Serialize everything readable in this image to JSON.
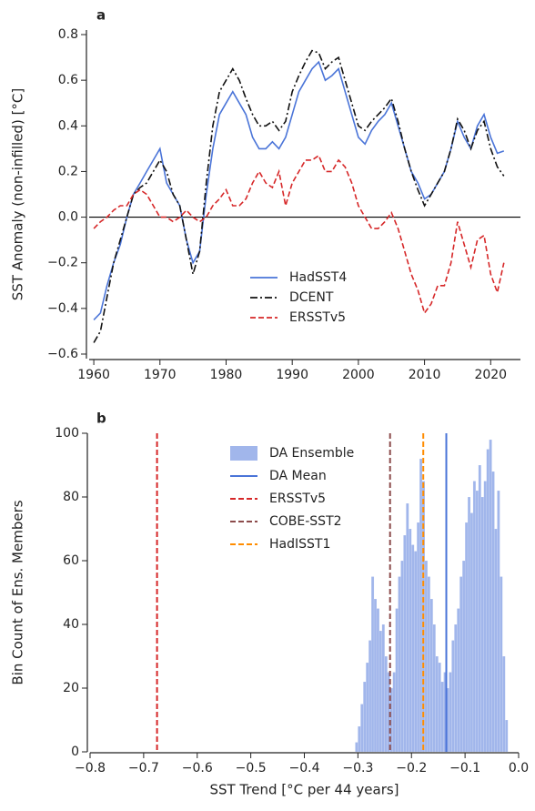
{
  "chart_data": [
    {
      "type": "line",
      "label": "a",
      "ylabel": "SST Anomaly (non-infilled) [°C]",
      "x": [
        1960,
        1961,
        1962,
        1963,
        1964,
        1965,
        1966,
        1967,
        1968,
        1969,
        1970,
        1971,
        1972,
        1973,
        1974,
        1975,
        1976,
        1977,
        1978,
        1979,
        1980,
        1981,
        1982,
        1983,
        1984,
        1985,
        1986,
        1987,
        1988,
        1989,
        1990,
        1991,
        1992,
        1993,
        1994,
        1995,
        1996,
        1997,
        1998,
        1999,
        2000,
        2001,
        2002,
        2003,
        2004,
        2005,
        2006,
        2007,
        2008,
        2009,
        2010,
        2011,
        2012,
        2013,
        2014,
        2015,
        2016,
        2017,
        2018,
        2019,
        2020,
        2021,
        2022
      ],
      "series": [
        {
          "name": "HadSST4",
          "color": "#4a74d8",
          "style": "solid",
          "values": [
            -0.45,
            -0.42,
            -0.3,
            -0.2,
            -0.12,
            0.0,
            0.1,
            0.15,
            0.2,
            0.25,
            0.3,
            0.15,
            0.1,
            0.05,
            -0.1,
            -0.2,
            -0.15,
            0.1,
            0.3,
            0.45,
            0.5,
            0.55,
            0.5,
            0.45,
            0.35,
            0.3,
            0.3,
            0.33,
            0.3,
            0.35,
            0.45,
            0.55,
            0.6,
            0.65,
            0.68,
            0.6,
            0.62,
            0.65,
            0.55,
            0.45,
            0.35,
            0.32,
            0.38,
            0.42,
            0.45,
            0.5,
            0.4,
            0.3,
            0.2,
            0.15,
            0.08,
            0.1,
            0.15,
            0.2,
            0.3,
            0.42,
            0.35,
            0.3,
            0.4,
            0.45,
            0.35,
            0.28,
            0.29
          ]
        },
        {
          "name": "DCENT",
          "color": "#111111",
          "style": "dashdot",
          "values": [
            -0.55,
            -0.5,
            -0.35,
            -0.2,
            -0.1,
            0.0,
            0.1,
            0.13,
            0.15,
            0.2,
            0.25,
            0.2,
            0.1,
            0.05,
            -0.1,
            -0.25,
            -0.15,
            0.15,
            0.4,
            0.55,
            0.6,
            0.65,
            0.6,
            0.52,
            0.45,
            0.4,
            0.4,
            0.42,
            0.38,
            0.42,
            0.55,
            0.62,
            0.68,
            0.73,
            0.72,
            0.65,
            0.68,
            0.7,
            0.6,
            0.5,
            0.4,
            0.38,
            0.42,
            0.45,
            0.48,
            0.52,
            0.42,
            0.3,
            0.2,
            0.12,
            0.05,
            0.1,
            0.15,
            0.2,
            0.3,
            0.43,
            0.38,
            0.3,
            0.38,
            0.42,
            0.3,
            0.22,
            0.18
          ]
        },
        {
          "name": "ERSSTv5",
          "color": "#d62728",
          "style": "dashed",
          "values": [
            -0.05,
            -0.02,
            0.0,
            0.03,
            0.05,
            0.05,
            0.1,
            0.12,
            0.1,
            0.05,
            0.0,
            0.0,
            -0.02,
            0.0,
            0.03,
            0.0,
            -0.02,
            0.0,
            0.05,
            0.08,
            0.12,
            0.05,
            0.05,
            0.08,
            0.15,
            0.2,
            0.15,
            0.13,
            0.2,
            0.05,
            0.15,
            0.2,
            0.25,
            0.25,
            0.27,
            0.2,
            0.2,
            0.25,
            0.22,
            0.15,
            0.05,
            0.0,
            -0.05,
            -0.05,
            -0.02,
            0.02,
            -0.05,
            -0.15,
            -0.25,
            -0.32,
            -0.42,
            -0.38,
            -0.3,
            -0.3,
            -0.2,
            -0.02,
            -0.12,
            -0.22,
            -0.1,
            -0.08,
            -0.25,
            -0.33,
            -0.2
          ]
        }
      ],
      "hline": 0,
      "xlim": [
        1959.3,
        2024.5
      ],
      "ylim": [
        -0.62,
        0.82
      ],
      "xticks": [
        1960,
        1970,
        1980,
        1990,
        2000,
        2010,
        2020
      ],
      "yticks": [
        {
          "value": -0.6,
          "label": "−0.6"
        },
        {
          "value": -0.4,
          "label": "−0.4"
        },
        {
          "value": -0.2,
          "label": "−0.2"
        },
        {
          "value": 0,
          "label": "0.0"
        },
        0.2,
        0.4,
        0.6,
        0.8
      ],
      "legend": "lower right"
    },
    {
      "type": "histogram",
      "label": "b",
      "xlabel": "SST Trend [°C per 44 years]",
      "ylabel": "Bin Count of Ens. Members",
      "name": "DA Ensemble",
      "color": "#6f8fe0",
      "bins": [
        -0.305,
        -0.3,
        -0.295,
        -0.29,
        -0.285,
        -0.28,
        -0.275,
        -0.27,
        -0.265,
        -0.26,
        -0.255,
        -0.25,
        -0.245,
        -0.24,
        -0.235,
        -0.23,
        -0.225,
        -0.22,
        -0.215,
        -0.21,
        -0.205,
        -0.2,
        -0.195,
        -0.19,
        -0.185,
        -0.18,
        -0.175,
        -0.17,
        -0.165,
        -0.16,
        -0.155,
        -0.15,
        -0.145,
        -0.14,
        -0.135,
        -0.13,
        -0.125,
        -0.12,
        -0.115,
        -0.11,
        -0.105,
        -0.1,
        -0.095,
        -0.09,
        -0.085,
        -0.08,
        -0.075,
        -0.07,
        -0.065,
        -0.06,
        -0.055,
        -0.05,
        -0.045,
        -0.04,
        -0.035,
        -0.03,
        -0.025,
        -0.02
      ],
      "values": [
        3,
        8,
        15,
        22,
        28,
        35,
        55,
        48,
        45,
        38,
        40,
        30,
        25,
        20,
        25,
        45,
        55,
        60,
        68,
        78,
        70,
        65,
        63,
        72,
        92,
        85,
        60,
        55,
        48,
        40,
        30,
        28,
        22,
        25,
        20,
        25,
        35,
        40,
        45,
        55,
        60,
        72,
        80,
        75,
        85,
        82,
        90,
        80,
        85,
        95,
        98,
        88,
        70,
        82,
        55,
        30,
        10
      ],
      "vlines": [
        {
          "name": "DA Mean",
          "color": "#4a74d8",
          "style": "solid",
          "value": -0.135
        },
        {
          "name": "ERSSTv5",
          "color": "#d62728",
          "style": "dashed",
          "value": -0.675
        },
        {
          "name": "COBE-SST2",
          "color": "#8c4b4b",
          "style": "dashed",
          "value": -0.24
        },
        {
          "name": "HadISST1",
          "color": "#ff8c00",
          "style": "dashed",
          "value": -0.178
        }
      ],
      "xlim": [
        -0.8,
        0.0
      ],
      "ylim": [
        0,
        100
      ],
      "xticks": [
        {
          "value": -0.8,
          "label": "−0.8"
        },
        {
          "value": -0.7,
          "label": "−0.7"
        },
        {
          "value": -0.6,
          "label": "−0.6"
        },
        {
          "value": -0.5,
          "label": "−0.5"
        },
        {
          "value": -0.4,
          "label": "−0.4"
        },
        {
          "value": -0.3,
          "label": "−0.3"
        },
        {
          "value": -0.2,
          "label": "−0.2"
        },
        {
          "value": -0.1,
          "label": "−0.1"
        },
        {
          "value": 0,
          "label": "0.0"
        }
      ],
      "yticks": [
        0,
        20,
        40,
        60,
        80,
        100
      ],
      "legend": "upper center"
    }
  ]
}
